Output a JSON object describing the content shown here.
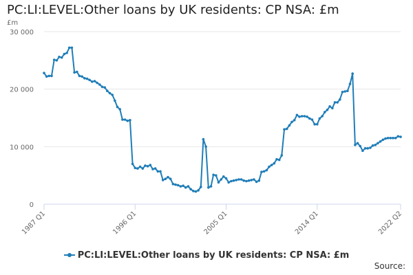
{
  "chart_data": {
    "type": "line",
    "title": "PC:LI:LEVEL:Other loans by UK residents: CP NSA: £m",
    "ylabel": "£m",
    "ylim": [
      0,
      30000
    ],
    "yticks": [
      0,
      10000,
      20000,
      30000
    ],
    "ytick_labels": [
      "0",
      "10 000",
      "20 000",
      "30 000"
    ],
    "xtick_labels": [
      "1987 Q1",
      "1996 Q1",
      "2005 Q1",
      "2014 Q1",
      "2022 Q2"
    ],
    "grid": true,
    "legend_position": "bottom",
    "color": "#1f7db8",
    "source_label": "Source:",
    "series": [
      {
        "name": "PC:LI:LEVEL:Other loans by UK residents: CP NSA: £m",
        "x": [
          "1987 Q1",
          "1987 Q2",
          "1987 Q3",
          "1987 Q4",
          "1988 Q1",
          "1988 Q2",
          "1988 Q3",
          "1988 Q4",
          "1989 Q1",
          "1989 Q2",
          "1989 Q3",
          "1989 Q4",
          "1990 Q1",
          "1990 Q2",
          "1990 Q3",
          "1990 Q4",
          "1991 Q1",
          "1991 Q2",
          "1991 Q3",
          "1991 Q4",
          "1992 Q1",
          "1992 Q2",
          "1992 Q3",
          "1992 Q4",
          "1993 Q1",
          "1993 Q2",
          "1993 Q3",
          "1993 Q4",
          "1994 Q1",
          "1994 Q2",
          "1994 Q3",
          "1994 Q4",
          "1995 Q1",
          "1995 Q2",
          "1995 Q3",
          "1995 Q4",
          "1996 Q1",
          "1996 Q2",
          "1996 Q3",
          "1996 Q4",
          "1997 Q1",
          "1997 Q2",
          "1997 Q3",
          "1997 Q4",
          "1998 Q1",
          "1998 Q2",
          "1998 Q3",
          "1998 Q4",
          "1999 Q1",
          "1999 Q2",
          "1999 Q3",
          "1999 Q4",
          "2000 Q1",
          "2000 Q2",
          "2000 Q3",
          "2000 Q4",
          "2001 Q1",
          "2001 Q2",
          "2001 Q3",
          "2001 Q4",
          "2002 Q1",
          "2002 Q2",
          "2002 Q3",
          "2002 Q4",
          "2003 Q1",
          "2003 Q2",
          "2003 Q3",
          "2003 Q4",
          "2004 Q1",
          "2004 Q2",
          "2004 Q3",
          "2004 Q4",
          "2005 Q1",
          "2005 Q2",
          "2005 Q3",
          "2005 Q4",
          "2006 Q1",
          "2006 Q2",
          "2006 Q3",
          "2006 Q4",
          "2007 Q1",
          "2007 Q2",
          "2007 Q3",
          "2007 Q4",
          "2008 Q1",
          "2008 Q2",
          "2008 Q3",
          "2008 Q4",
          "2009 Q1",
          "2009 Q2",
          "2009 Q3",
          "2009 Q4",
          "2010 Q1",
          "2010 Q2",
          "2010 Q3",
          "2010 Q4",
          "2011 Q1",
          "2011 Q2",
          "2011 Q3",
          "2011 Q4",
          "2012 Q1",
          "2012 Q2",
          "2012 Q3",
          "2012 Q4",
          "2013 Q1",
          "2013 Q2",
          "2013 Q3",
          "2013 Q4",
          "2014 Q1",
          "2014 Q2",
          "2014 Q3",
          "2014 Q4",
          "2015 Q1",
          "2015 Q2",
          "2015 Q3",
          "2015 Q4",
          "2016 Q1",
          "2016 Q2",
          "2016 Q3",
          "2016 Q4",
          "2017 Q1",
          "2017 Q2",
          "2017 Q3",
          "2017 Q4",
          "2018 Q1",
          "2018 Q2",
          "2018 Q3",
          "2018 Q4",
          "2019 Q1",
          "2019 Q2",
          "2019 Q3",
          "2019 Q4",
          "2020 Q1",
          "2020 Q2",
          "2020 Q3",
          "2020 Q4",
          "2021 Q1",
          "2021 Q2",
          "2021 Q3",
          "2021 Q4",
          "2022 Q1",
          "2022 Q2"
        ],
        "values": [
          22800,
          22200,
          22300,
          22300,
          25100,
          25000,
          25600,
          25500,
          26100,
          26300,
          27200,
          27200,
          22900,
          23000,
          22300,
          22200,
          21900,
          21800,
          21600,
          21300,
          21400,
          21100,
          20800,
          20400,
          20300,
          19700,
          19300,
          19000,
          18000,
          16900,
          16500,
          14700,
          14700,
          14500,
          14600,
          7000,
          6300,
          6200,
          6500,
          6200,
          6700,
          6600,
          6800,
          6100,
          6200,
          5700,
          5700,
          4200,
          4400,
          4700,
          4400,
          3500,
          3400,
          3300,
          3100,
          3200,
          2900,
          3100,
          2600,
          2300,
          2200,
          2400,
          3000,
          11300,
          10000,
          2900,
          3100,
          5100,
          5000,
          3800,
          4300,
          4800,
          4500,
          3800,
          4000,
          4100,
          4200,
          4300,
          4300,
          4100,
          4000,
          4100,
          4200,
          4300,
          3900,
          4100,
          5600,
          5700,
          5900,
          6500,
          6800,
          7100,
          7800,
          7700,
          8500,
          13000,
          13100,
          13700,
          14300,
          14600,
          15500,
          15200,
          15300,
          15300,
          15200,
          14900,
          14700,
          13900,
          13900,
          14900,
          15300,
          16000,
          16400,
          17000,
          16700,
          17700,
          17700,
          18200,
          19500,
          19600,
          19700,
          20900,
          22700,
          10300,
          10600,
          10100,
          9300,
          9700,
          9700,
          9800,
          10200,
          10300,
          10600,
          10900,
          11200,
          11400,
          11500,
          11500,
          11500,
          11500,
          11800,
          11700
        ]
      }
    ]
  }
}
